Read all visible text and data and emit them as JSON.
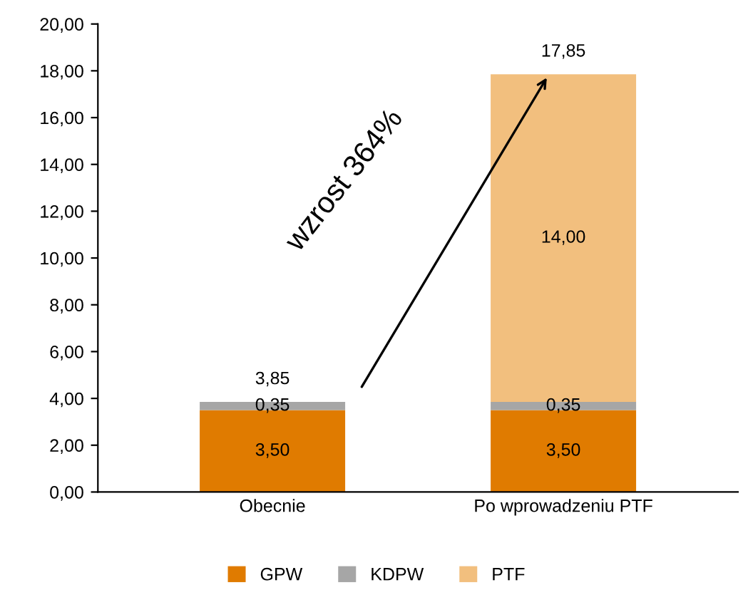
{
  "chart_data": {
    "type": "bar",
    "stacked": true,
    "categories": [
      "Obecnie",
      "Po wprowadzeniu PTF"
    ],
    "series": [
      {
        "name": "GPW",
        "color": "#e07b00",
        "values": [
          3.5,
          3.5
        ],
        "value_labels": [
          "3,50",
          "3,50"
        ]
      },
      {
        "name": "KDPW",
        "color": "#a6a6a6",
        "values": [
          0.35,
          0.35
        ],
        "value_labels": [
          "0,35",
          "0,35"
        ]
      },
      {
        "name": "PTF",
        "color": "#f2bf7e",
        "values": [
          0,
          14
        ],
        "value_labels": [
          null,
          "14,00"
        ]
      }
    ],
    "totals": [
      "3,85",
      "17,85"
    ],
    "annotations": [
      "wzrost 364%"
    ],
    "ylim": [
      0,
      20
    ],
    "yticks": [
      {
        "value": 0,
        "label": "0,00"
      },
      {
        "value": 2,
        "label": "2,00"
      },
      {
        "value": 4,
        "label": "4,00"
      },
      {
        "value": 6,
        "label": "6,00"
      },
      {
        "value": 8,
        "label": "8,00"
      },
      {
        "value": 10,
        "label": "10,00"
      },
      {
        "value": 12,
        "label": "12,00"
      },
      {
        "value": 14,
        "label": "14,00"
      },
      {
        "value": 16,
        "label": "16,00"
      },
      {
        "value": 18,
        "label": "18,00"
      },
      {
        "value": 20,
        "label": "20,00"
      }
    ],
    "grid": false,
    "legend": "bottom"
  }
}
